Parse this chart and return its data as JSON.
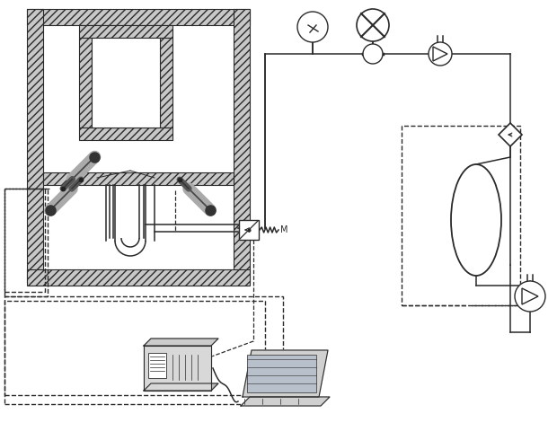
{
  "bg_color": "#ffffff",
  "line_color": "#2a2a2a",
  "figsize": [
    6.2,
    4.9
  ],
  "dpi": 100,
  "gray_fill": "#c8c8c8",
  "white_fill": "#ffffff"
}
